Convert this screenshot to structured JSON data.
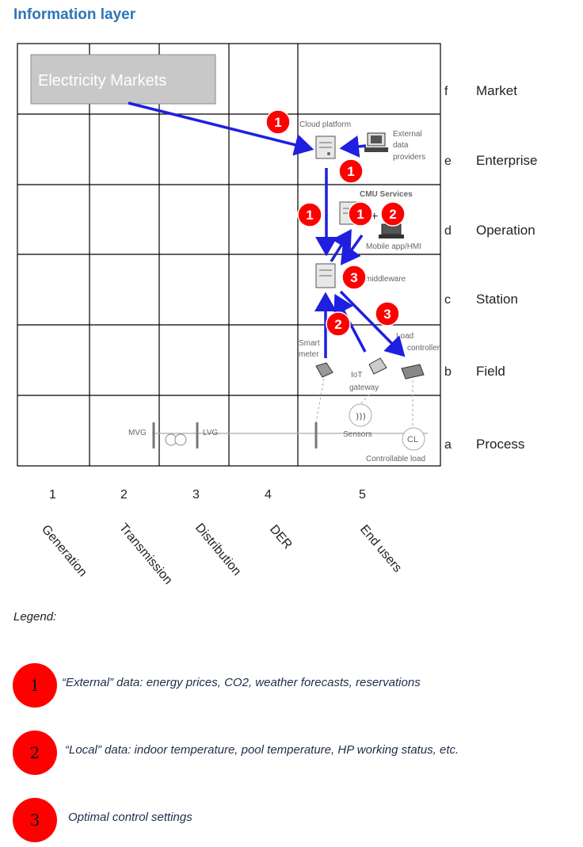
{
  "title": "Information layer",
  "markets_box": "Electricity Markets",
  "zones": [
    {
      "letter": "f",
      "name": "Market"
    },
    {
      "letter": "e",
      "name": "Enterprise"
    },
    {
      "letter": "d",
      "name": "Operation"
    },
    {
      "letter": "c",
      "name": "Station"
    },
    {
      "letter": "b",
      "name": "Field"
    },
    {
      "letter": "a",
      "name": "Process"
    }
  ],
  "domains": [
    {
      "num": "1",
      "name": "Generation"
    },
    {
      "num": "2",
      "name": "Transmission"
    },
    {
      "num": "3",
      "name": "Distribution"
    },
    {
      "num": "4",
      "name": "DER"
    },
    {
      "num": "5",
      "name": "End users"
    }
  ],
  "components": {
    "cloud_platform": "Cloud platform",
    "external_1": "External",
    "external_2": "data",
    "external_3": "providers",
    "cmu_services": "CMU Services",
    "plus": "+",
    "mobile_app": "Mobile app/HMI",
    "middleware": "middleware",
    "smart_1": "Smart",
    "smart_2": "meter",
    "iot_1": "IoT",
    "iot_2": "gateway",
    "load_1": "Load",
    "load_2": "controller",
    "sensors": "Sensors",
    "cl": "CL",
    "controllable_load": "Controllable load",
    "mvg": "MVG",
    "lvg": "LVG"
  },
  "badges": [
    "1",
    "1",
    "1",
    "1",
    "2",
    "3",
    "2",
    "3"
  ],
  "legend": {
    "title": "Legend:",
    "items": [
      {
        "num": "1",
        "text": "“External” data: energy prices, CO2, weather forecasts, reservations"
      },
      {
        "num": "2",
        "text": "“Local” data: indoor temperature, pool temperature, HP working status, etc."
      },
      {
        "num": "3",
        "text": "Optimal control settings"
      }
    ]
  },
  "colors": {
    "arrow": "#1f1fe0",
    "badge": "#ff0000",
    "title": "#2e75b6"
  }
}
